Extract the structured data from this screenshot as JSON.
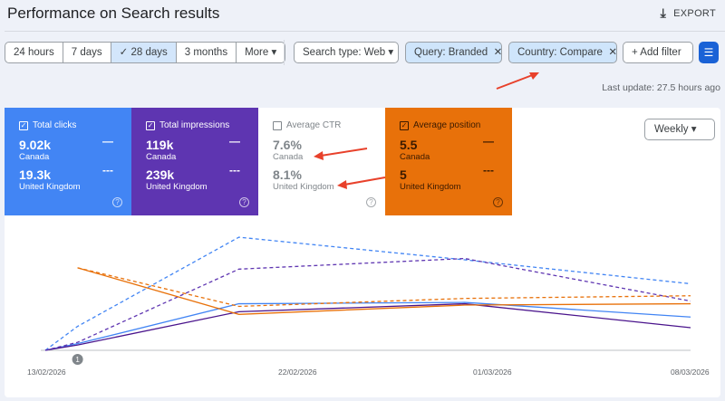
{
  "header": {
    "title": "Performance on Search results",
    "export_label": "EXPORT"
  },
  "date_ranges": [
    {
      "label": "24 hours"
    },
    {
      "label": "7 days"
    },
    {
      "label": "✓ 28 days",
      "selected": true
    },
    {
      "label": "3 months"
    },
    {
      "label": "More ▾"
    }
  ],
  "filters": {
    "search_type": "Search type: Web ▾",
    "query": "Query: Branded",
    "country": "Country: Compare",
    "add_filter": "+ Add filter",
    "close": "✕"
  },
  "last_update": "Last update: 27.5 hours ago",
  "metrics": [
    {
      "title": "Total clicks",
      "checked": true,
      "color": "#4285f4",
      "a_value": "9.02k",
      "a_label": "Canada",
      "b_value": "19.3k",
      "b_label": "United Kingdom"
    },
    {
      "title": "Total impressions",
      "checked": true,
      "color": "#5e35b1",
      "a_value": "119k",
      "a_label": "Canada",
      "b_value": "239k",
      "b_label": "United Kingdom"
    },
    {
      "title": "Average CTR",
      "checked": false,
      "color": "#ffffff",
      "a_value": "7.6%",
      "a_label": "Canada",
      "b_value": "8.1%",
      "b_label": "United Kingdom"
    },
    {
      "title": "Average position",
      "checked": true,
      "color": "#e8710a",
      "a_value": "5.5",
      "a_label": "Canada",
      "b_value": "5",
      "b_label": "United Kingdom"
    }
  ],
  "legend_solid": "—",
  "legend_dashed": "---",
  "help": "?",
  "check": "✓",
  "granularity": "Weekly ▾",
  "chart_data": {
    "type": "line",
    "x_labels": [
      "13/02/2026",
      "22/02/2026",
      "01/03/2026",
      "08/03/2026"
    ],
    "x": [
      0,
      1,
      6,
      13,
      20
    ],
    "annotation": {
      "x": 1,
      "label": "1"
    },
    "ylim": [
      0,
      100
    ],
    "series": [
      {
        "name": "Clicks Canada",
        "color": "#4285f4",
        "dashed": false,
        "values": [
          0,
          5,
          35,
          36,
          25
        ]
      },
      {
        "name": "Clicks United Kingdom",
        "color": "#4285f4",
        "dashed": true,
        "values": [
          0,
          18,
          85,
          68,
          50
        ]
      },
      {
        "name": "Impressions Canada",
        "color": "#4a148c",
        "dashed": false,
        "values": [
          0,
          4,
          29,
          35,
          17
        ]
      },
      {
        "name": "Impressions United Kingdom",
        "color": "#5e35b1",
        "dashed": true,
        "values": [
          0,
          6,
          61,
          69,
          37
        ]
      },
      {
        "name": "Position Canada",
        "color": "#e8710a",
        "dashed": false,
        "values": [
          null,
          62,
          27,
          34,
          35
        ]
      },
      {
        "name": "Position United Kingdom",
        "color": "#e8710a",
        "dashed": true,
        "values": [
          null,
          62,
          33,
          39,
          41
        ]
      }
    ]
  }
}
